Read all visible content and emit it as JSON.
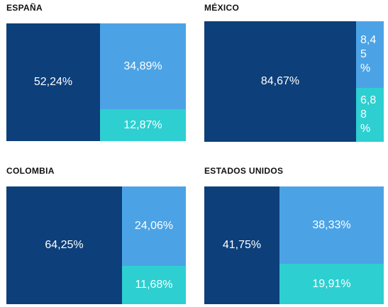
{
  "chart_data": [
    {
      "type": "treemap",
      "title": "ESPAÑA",
      "values": [
        {
          "label": "52,24%",
          "value": 52.24,
          "color": "#0d3f7a"
        },
        {
          "label": "34,89%",
          "value": 34.89,
          "color": "#4ba3e6"
        },
        {
          "label": "12,87%",
          "value": 12.87,
          "color": "#2ecfd0"
        }
      ]
    },
    {
      "type": "treemap",
      "title": "MÉXICO",
      "values": [
        {
          "label": "84,67%",
          "value": 84.67,
          "color": "#0d3f7a"
        },
        {
          "label": "8,45 %",
          "value": 8.45,
          "color": "#4ba3e6"
        },
        {
          "label": "6,88 %",
          "value": 6.88,
          "color": "#2ecfd0"
        }
      ]
    },
    {
      "type": "treemap",
      "title": "COLOMBIA",
      "values": [
        {
          "label": "64,25%",
          "value": 64.25,
          "color": "#0d3f7a"
        },
        {
          "label": "24,06%",
          "value": 24.06,
          "color": "#4ba3e6"
        },
        {
          "label": "11,68%",
          "value": 11.68,
          "color": "#2ecfd0"
        }
      ]
    },
    {
      "type": "treemap",
      "title": "ESTADOS UNIDOS",
      "values": [
        {
          "label": "41,75%",
          "value": 41.75,
          "color": "#0d3f7a"
        },
        {
          "label": "38,33%",
          "value": 38.33,
          "color": "#4ba3e6"
        },
        {
          "label": "19,91%",
          "value": 19.91,
          "color": "#2ecfd0"
        }
      ]
    }
  ]
}
